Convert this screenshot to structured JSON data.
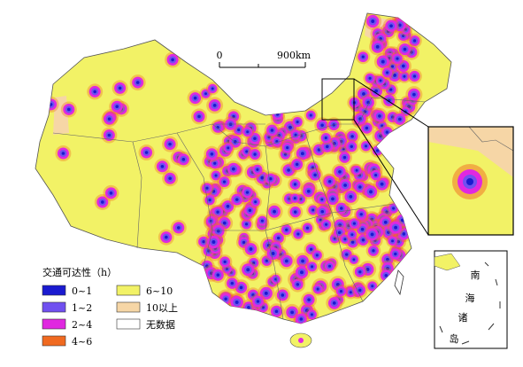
{
  "legend": {
    "title": "交通可达性（h）",
    "items": [
      {
        "label": "0~1",
        "color": "#1a1ad0"
      },
      {
        "label": "1~2",
        "color": "#7050f0"
      },
      {
        "label": "2~4",
        "color": "#e028e0"
      },
      {
        "label": "4~6",
        "color": "#f06a20"
      },
      {
        "label": "6~10",
        "color": "#f2f266"
      },
      {
        "label": "10以上",
        "color": "#f6d6a6"
      },
      {
        "label": "无数据",
        "color": "#ffffff"
      }
    ]
  },
  "scale_bar": {
    "start": "0",
    "end": "900km"
  },
  "inset": {
    "label": [
      "南",
      "海",
      "诸",
      "岛"
    ]
  }
}
